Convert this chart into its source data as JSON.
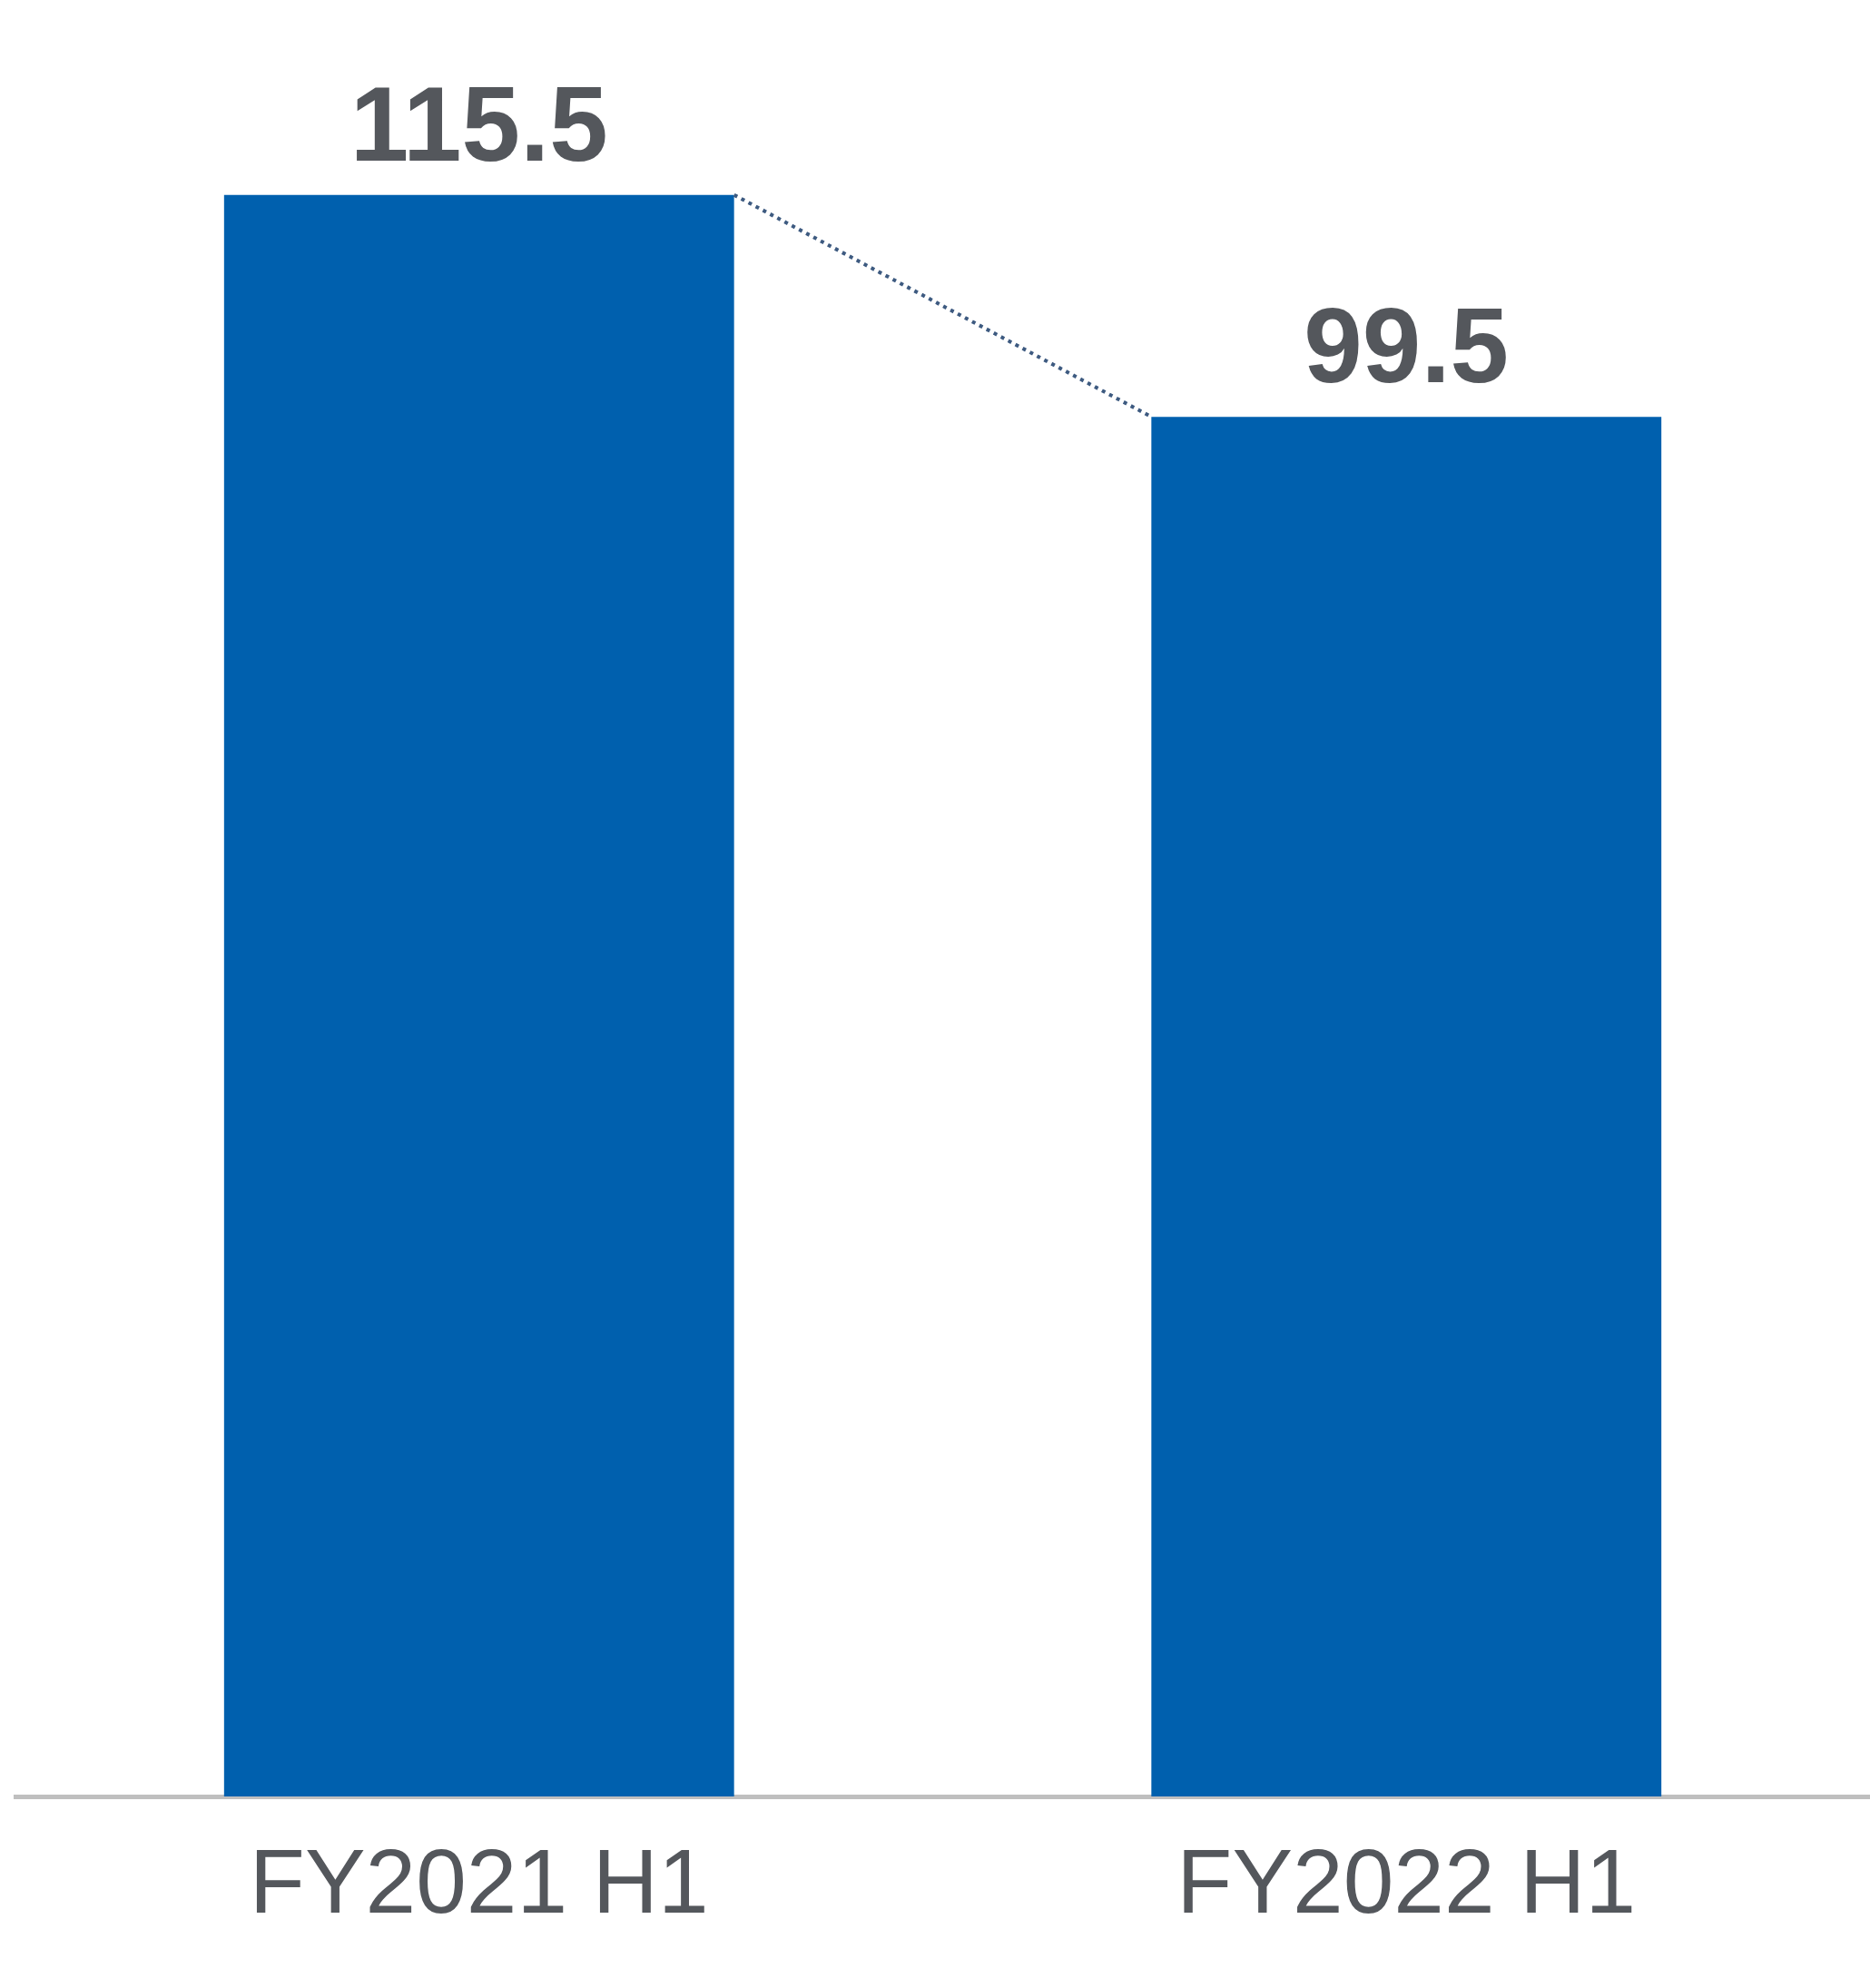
{
  "chart_data": {
    "type": "bar",
    "categories": [
      "FY2021 H1",
      "FY2022 H1"
    ],
    "values": [
      115.5,
      99.5
    ],
    "color": "#0060ae",
    "data_labels": true,
    "grid": false,
    "legend": false
  }
}
